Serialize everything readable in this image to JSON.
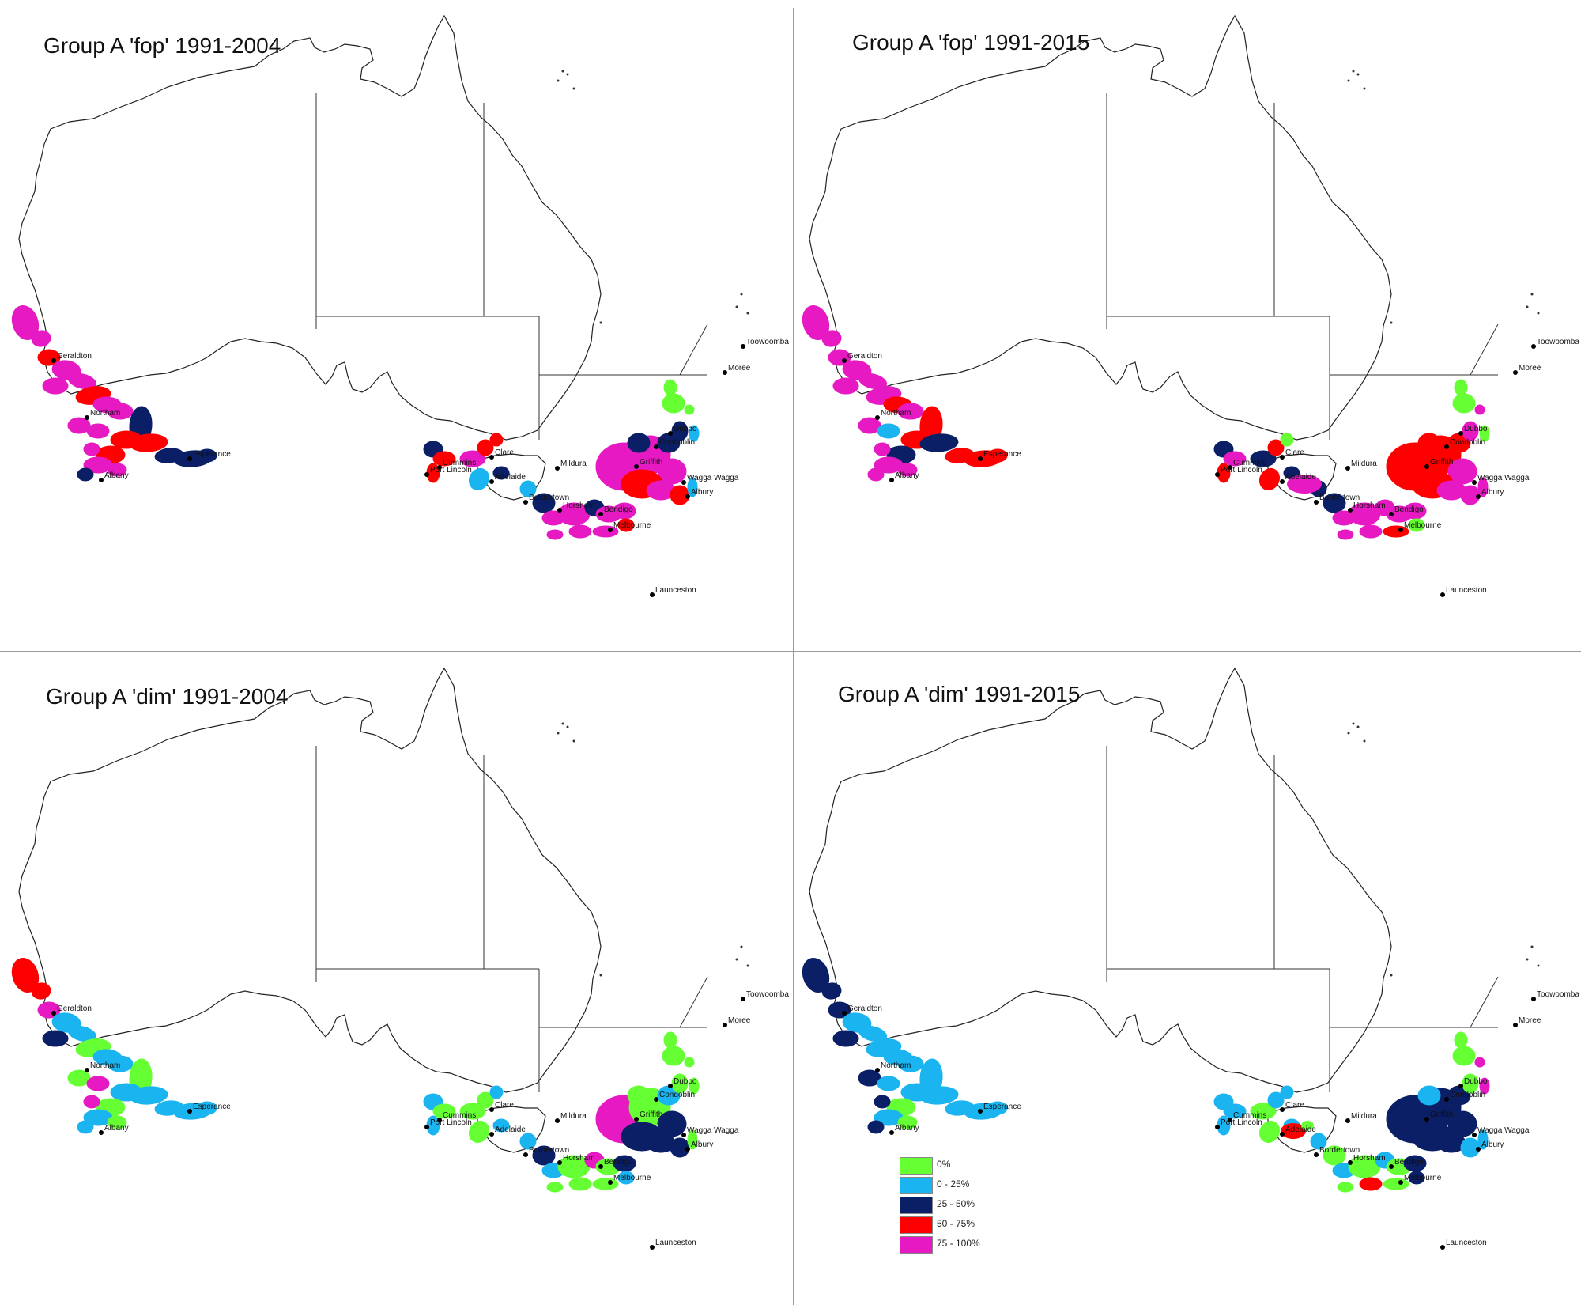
{
  "panels": [
    {
      "title": "Group A 'fop' 1991-2004",
      "variant": "fop-2004"
    },
    {
      "title": "Group A 'fop' 1991-2015",
      "variant": "fop-2015"
    },
    {
      "title": "Group A 'dim' 1991-2004",
      "variant": "dim-2004"
    },
    {
      "title": "Group A 'dim' 1991-2015",
      "variant": "dim-2015"
    }
  ],
  "towns": [
    "Toowoomba",
    "Moree",
    "Geraldton",
    "Dubbo",
    "Northam",
    "Condoblin",
    "Cummins",
    "Clare",
    "Griffith",
    "Esperance",
    "Port Lincoln",
    "Adelaide",
    "Mildura",
    "Wagga Wagga",
    "Albany",
    "Albury",
    "Bordertown",
    "Horsham",
    "Bendigo",
    "Melbourne",
    "Launceston"
  ],
  "legend": [
    {
      "label": "0%",
      "color": "#66ff33"
    },
    {
      "label": "0 - 25%",
      "color": "#1ab4f0"
    },
    {
      "label": "25 - 50%",
      "color": "#0a1f66"
    },
    {
      "label": "50 - 75%",
      "color": "#ff0000"
    },
    {
      "label": "75 - 100%",
      "color": "#e619c3"
    }
  ]
}
